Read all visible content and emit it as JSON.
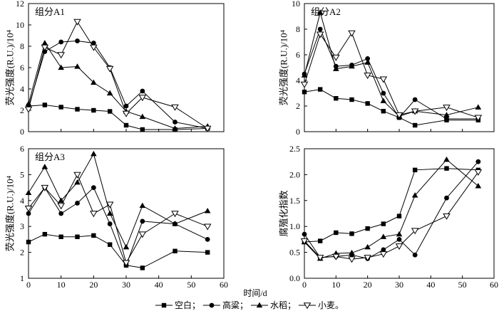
{
  "figure": {
    "xlabel": "时间/d",
    "legend": [
      {
        "name": "空白",
        "sep": "；",
        "marker": "square-filled"
      },
      {
        "name": "高粱",
        "sep": "；",
        "marker": "circle-filled"
      },
      {
        "name": "水稻",
        "sep": "；",
        "marker": "triangle-up-filled"
      },
      {
        "name": "小麦",
        "sep": "。",
        "marker": "triangle-down-open"
      }
    ]
  },
  "colors": {
    "line": "#000000",
    "background": "#ffffff",
    "open_marker_fill": "#ffffff"
  },
  "chart_data": [
    {
      "type": "line",
      "title": "组分A1",
      "ylabel": "荧光强度(R.U.)/10⁴",
      "xlim": [
        0,
        60
      ],
      "xticks": [
        0,
        10,
        20,
        30,
        40,
        50,
        60
      ],
      "ylim": [
        0,
        12
      ],
      "yticks": [
        0,
        2,
        4,
        6,
        8,
        10,
        12
      ],
      "ytick_labels": [
        "0",
        "2",
        "4",
        "6",
        "8",
        "10",
        "12"
      ],
      "x": [
        0,
        5,
        10,
        15,
        20,
        25,
        30,
        35,
        45,
        55
      ],
      "series": [
        {
          "name": "空白",
          "marker": "square-filled",
          "values": [
            2.4,
            2.5,
            2.3,
            2.1,
            2.0,
            1.9,
            0.6,
            0.2,
            0.2,
            0.3
          ]
        },
        {
          "name": "高粱",
          "marker": "circle-filled",
          "values": [
            2.3,
            7.5,
            8.4,
            8.5,
            8.3,
            6.0,
            2.4,
            3.8,
            0.9,
            0.3
          ]
        },
        {
          "name": "水稻",
          "marker": "triangle-up-filled",
          "values": [
            2.6,
            8.3,
            6.0,
            6.1,
            4.6,
            3.6,
            1.9,
            1.4,
            0.3,
            0.5
          ]
        },
        {
          "name": "小麦",
          "marker": "triangle-down-open",
          "values": [
            2.1,
            7.9,
            7.2,
            10.3,
            7.9,
            5.9,
            1.7,
            3.2,
            2.3,
            0.3
          ]
        }
      ]
    },
    {
      "type": "line",
      "title": "组分A2",
      "ylabel": "荧光强度(R.U.)/10⁴",
      "xlim": [
        0,
        60
      ],
      "xticks": [
        0,
        10,
        20,
        30,
        40,
        50,
        60
      ],
      "ylim": [
        0,
        10
      ],
      "yticks": [
        0,
        2,
        4,
        6,
        8,
        10
      ],
      "ytick_labels": [
        "0",
        "2",
        "4",
        "6",
        "8",
        "10"
      ],
      "x": [
        0,
        5,
        10,
        15,
        20,
        25,
        30,
        35,
        45,
        55
      ],
      "series": [
        {
          "name": "空白",
          "marker": "square-filled",
          "values": [
            3.1,
            3.3,
            2.6,
            2.5,
            2.2,
            1.6,
            1.1,
            0.5,
            0.9,
            0.9
          ]
        },
        {
          "name": "高粱",
          "marker": "circle-filled",
          "values": [
            4.5,
            8.0,
            5.1,
            5.2,
            5.7,
            3.0,
            1.1,
            2.5,
            1.0,
            1.0
          ]
        },
        {
          "name": "水稻",
          "marker": "triangle-up-filled",
          "values": [
            4.4,
            9.3,
            4.9,
            5.1,
            5.4,
            2.4,
            1.2,
            1.6,
            1.3,
            1.9
          ]
        },
        {
          "name": "小麦",
          "marker": "triangle-down-open",
          "values": [
            3.7,
            7.6,
            5.8,
            7.7,
            4.4,
            4.1,
            1.3,
            1.6,
            1.9,
            1.1
          ]
        }
      ]
    },
    {
      "type": "line",
      "title": "组分A3",
      "ylabel": "荧光强度(R.U.)/10⁴",
      "xlim": [
        0,
        60
      ],
      "xticks": [
        0,
        10,
        20,
        30,
        40,
        50,
        60
      ],
      "xtick_labels": [
        "0",
        "10",
        "20",
        "30",
        "40",
        "50",
        "60"
      ],
      "ylim": [
        1,
        6
      ],
      "yticks": [
        1,
        2,
        3,
        4,
        5,
        6
      ],
      "ytick_labels": [
        "1",
        "2",
        "3",
        "4",
        "5",
        "6"
      ],
      "x": [
        0,
        5,
        10,
        15,
        20,
        25,
        30,
        35,
        45,
        55
      ],
      "series": [
        {
          "name": "空白",
          "marker": "square-filled",
          "values": [
            2.4,
            2.7,
            2.6,
            2.6,
            2.65,
            2.3,
            1.5,
            1.4,
            2.05,
            2.0
          ]
        },
        {
          "name": "高粱",
          "marker": "circle-filled",
          "values": [
            3.5,
            4.5,
            3.5,
            3.9,
            4.5,
            3.1,
            1.5,
            3.2,
            3.1,
            2.5
          ]
        },
        {
          "name": "水稻",
          "marker": "triangle-up-filled",
          "values": [
            4.3,
            5.3,
            4.0,
            4.7,
            5.8,
            3.5,
            2.2,
            3.8,
            3.1,
            3.6
          ]
        },
        {
          "name": "小麦",
          "marker": "triangle-down-open",
          "values": [
            3.7,
            4.5,
            3.8,
            5.0,
            3.5,
            3.85,
            1.6,
            2.7,
            3.5,
            3.0
          ]
        }
      ]
    },
    {
      "type": "line",
      "ylabel": "腐殖化指数",
      "xlim": [
        0,
        60
      ],
      "xticks": [
        0,
        10,
        20,
        30,
        40,
        50,
        60
      ],
      "xtick_labels": [
        "0",
        "10",
        "20",
        "30",
        "40",
        "50",
        "60"
      ],
      "ylim": [
        0,
        2.5
      ],
      "yticks": [
        0,
        0.5,
        1.0,
        1.5,
        2.0,
        2.5
      ],
      "ytick_labels": [
        "0.0",
        "0.5",
        "1.0",
        "1.5",
        "2.0",
        "2.5"
      ],
      "x": [
        0,
        5,
        10,
        15,
        20,
        25,
        30,
        35,
        45,
        55
      ],
      "series": [
        {
          "name": "空白",
          "marker": "square-filled",
          "values": [
            0.7,
            0.72,
            0.88,
            0.86,
            0.96,
            1.05,
            1.2,
            2.09,
            2.12,
            2.09
          ]
        },
        {
          "name": "高粱",
          "marker": "circle-filled",
          "values": [
            0.85,
            0.4,
            0.42,
            0.45,
            0.38,
            0.55,
            0.75,
            0.45,
            1.55,
            2.25
          ]
        },
        {
          "name": "水稻",
          "marker": "triangle-up-filled",
          "values": [
            0.7,
            0.38,
            0.48,
            0.49,
            0.6,
            0.8,
            0.85,
            1.6,
            2.29,
            1.78
          ]
        },
        {
          "name": "小麦",
          "marker": "triangle-down-open",
          "values": [
            0.72,
            0.4,
            0.42,
            0.37,
            0.4,
            0.47,
            0.62,
            0.92,
            1.2,
            2.05
          ]
        }
      ]
    }
  ]
}
